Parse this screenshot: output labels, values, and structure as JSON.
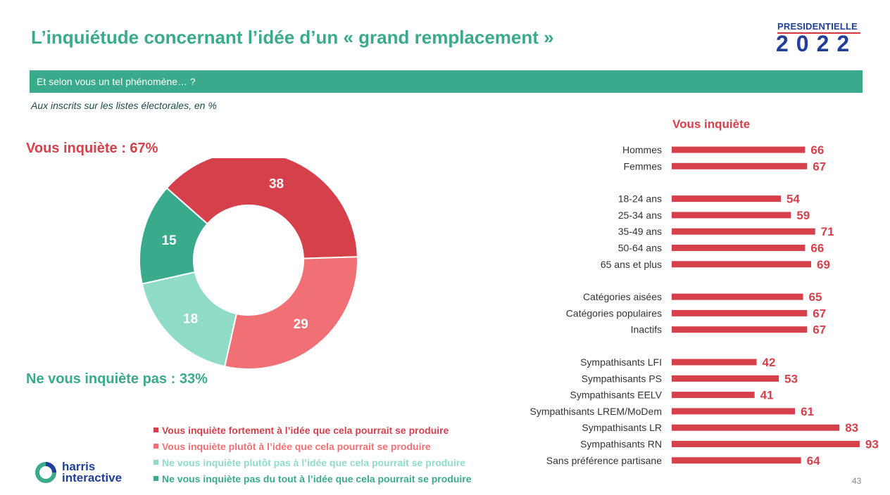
{
  "title": "L’inquiétude concernant l’idée d’un « grand remplacement »",
  "logo": {
    "top": "PRESIDENTIELLE",
    "year": "2022"
  },
  "question": "Et selon vous un tel phénomène… ?",
  "base": "Aux inscrits sur les listes électorales, en %",
  "summary": {
    "worried": "Vous inquiète : 67%",
    "not_worried": "Ne vous inquiète pas : 33%"
  },
  "harris": {
    "line1": "harris",
    "line2": "interactive"
  },
  "page_number": "43",
  "colors": {
    "strong": "#d6404a",
    "rather": "#f07075",
    "rather_not": "#8fdbc8",
    "not_at_all": "#3aaa8c",
    "bar": "#d6404a"
  },
  "chart_data": [
    {
      "type": "pie",
      "donut": true,
      "slices": [
        {
          "label": "Vous inquiète fortement à l’idée que cela pourrait se produire",
          "value": 38,
          "color": "#d6404a"
        },
        {
          "label": "Vous inquiète plutôt à l’idée que cela pourrait se produire",
          "value": 29,
          "color": "#f07075"
        },
        {
          "label": "Ne vous inquiète plutôt pas à l’idée que cela pourrait se produire",
          "value": 18,
          "color": "#8fdbc8"
        },
        {
          "label": "Ne vous inquiète pas du tout à l’idée que cela pourrait se produire",
          "value": 15,
          "color": "#3aaa8c"
        }
      ]
    },
    {
      "type": "bar",
      "orientation": "horizontal",
      "title": "Vous inquiète",
      "xlim": [
        0,
        100
      ],
      "groups": [
        {
          "categories": [
            "Hommes",
            "Femmes"
          ],
          "values": [
            66,
            67
          ]
        },
        {
          "categories": [
            "18-24 ans",
            "25-34 ans",
            "35-49 ans",
            "50-64 ans",
            "65 ans et plus"
          ],
          "values": [
            54,
            59,
            71,
            66,
            69
          ]
        },
        {
          "categories": [
            "Catégories aisées",
            "Catégories populaires",
            "Inactifs"
          ],
          "values": [
            65,
            67,
            67
          ]
        },
        {
          "categories": [
            "Sympathisants LFI",
            "Sympathisants PS",
            "Sympathisants EELV",
            "Sympathisants LREM/MoDem",
            "Sympathisants LR",
            "Sympathisants RN",
            "Sans préférence partisane"
          ],
          "values": [
            42,
            53,
            41,
            61,
            83,
            93,
            64
          ]
        }
      ]
    }
  ]
}
